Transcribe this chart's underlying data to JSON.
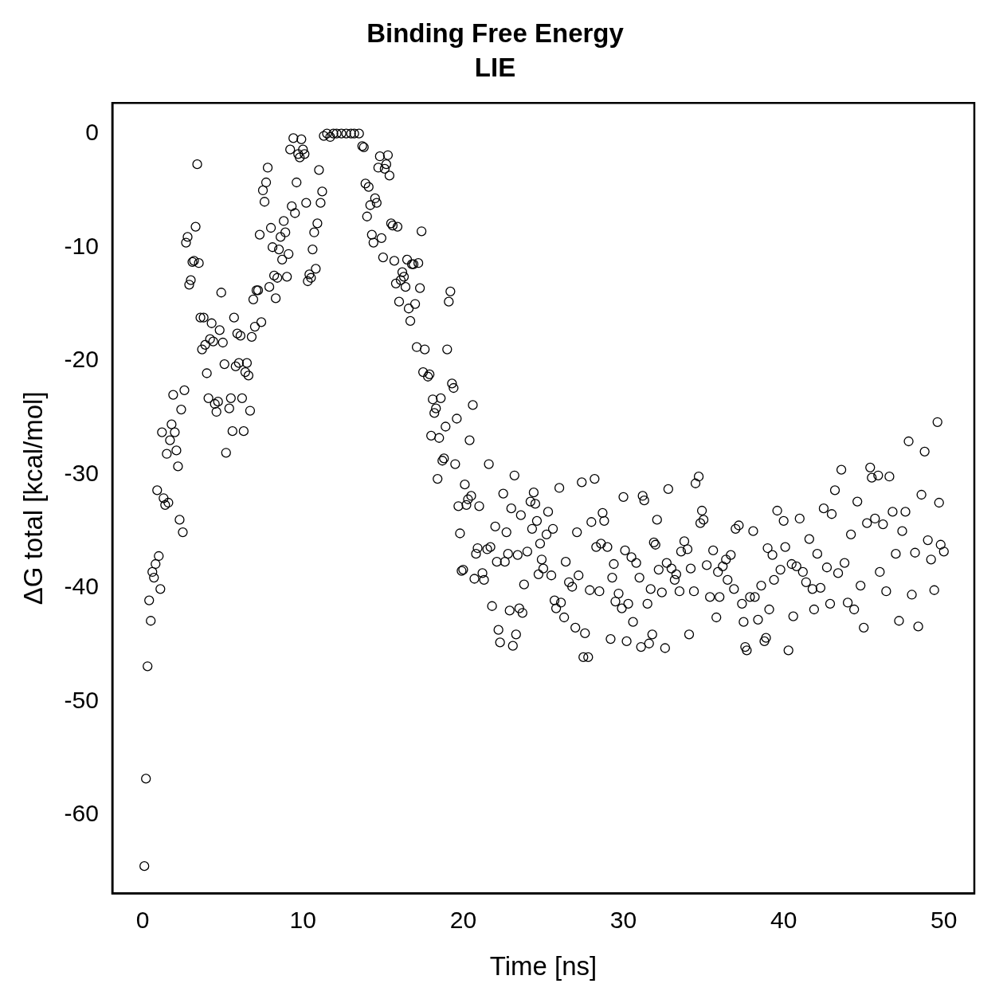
{
  "chart_data": {
    "type": "scatter",
    "title": "Binding Free Energy",
    "subtitle": "LIE",
    "xlabel": "Time [ns]",
    "ylabel": "ΔG total [kcal/mol]",
    "xlim": [
      -1.9,
      51.9
    ],
    "ylim": [
      -66.9,
      2.7
    ],
    "xticks": [
      0,
      10,
      20,
      30,
      40,
      50
    ],
    "yticks": [
      0,
      -10,
      -20,
      -30,
      -40,
      -50,
      -60
    ],
    "grid": false,
    "legend": false,
    "marker": "circle",
    "color": "#000000",
    "x": [
      0.1,
      0.2,
      0.3,
      0.4,
      0.5,
      0.6,
      0.7,
      0.8,
      0.9,
      1.0,
      1.1,
      1.2,
      1.3,
      1.4,
      1.5,
      1.6,
      1.7,
      1.8,
      1.9,
      2.0,
      2.1,
      2.2,
      2.3,
      2.4,
      2.5,
      2.6,
      2.7,
      2.8,
      2.9,
      3.0,
      3.1,
      3.2,
      3.3,
      3.4,
      3.5,
      3.6,
      3.7,
      3.8,
      3.9,
      4.0,
      4.1,
      4.2,
      4.3,
      4.4,
      4.5,
      4.6,
      4.7,
      4.8,
      4.9,
      5.0,
      5.1,
      5.2,
      5.4,
      5.5,
      5.6,
      5.7,
      5.8,
      5.9,
      6.0,
      6.1,
      6.2,
      6.3,
      6.4,
      6.5,
      6.6,
      6.7,
      6.8,
      6.9,
      7.0,
      7.1,
      7.2,
      7.3,
      7.4,
      7.5,
      7.6,
      7.7,
      7.8,
      7.9,
      8.0,
      8.1,
      8.2,
      8.3,
      8.4,
      8.5,
      8.6,
      8.7,
      8.8,
      8.9,
      9.0,
      9.1,
      9.2,
      9.3,
      9.4,
      9.5,
      9.6,
      9.7,
      9.8,
      9.9,
      10.0,
      10.1,
      10.2,
      10.3,
      10.4,
      10.5,
      10.6,
      10.7,
      10.8,
      10.9,
      11.0,
      11.1,
      11.2,
      11.3,
      11.5,
      11.7,
      11.9,
      12.1,
      12.4,
      12.7,
      13.0,
      13.2,
      13.5,
      13.7,
      13.8,
      13.9,
      14.0,
      14.1,
      14.2,
      14.3,
      14.4,
      14.5,
      14.6,
      14.7,
      14.8,
      14.9,
      15.0,
      15.1,
      15.2,
      15.3,
      15.4,
      15.5,
      15.6,
      15.7,
      15.8,
      15.9,
      16.0,
      16.1,
      16.2,
      16.3,
      16.4,
      16.5,
      16.6,
      16.7,
      16.8,
      16.9,
      17.0,
      17.1,
      17.2,
      17.3,
      17.4,
      17.5,
      17.6,
      17.8,
      17.9,
      18.0,
      18.1,
      18.2,
      18.3,
      18.4,
      18.5,
      18.6,
      18.7,
      18.8,
      18.9,
      19.0,
      19.1,
      19.2,
      19.3,
      19.4,
      19.5,
      19.6,
      19.7,
      19.8,
      19.9,
      20.0,
      20.1,
      20.2,
      20.3,
      20.4,
      20.5,
      20.6,
      20.7,
      20.8,
      20.9,
      21.0,
      21.2,
      21.3,
      21.5,
      21.6,
      21.7,
      21.8,
      22.0,
      22.1,
      22.2,
      22.3,
      22.5,
      22.6,
      22.7,
      22.8,
      22.9,
      23.0,
      23.1,
      23.2,
      23.3,
      23.4,
      23.5,
      23.6,
      23.7,
      23.8,
      24.0,
      24.2,
      24.3,
      24.4,
      24.5,
      24.6,
      24.7,
      24.8,
      24.9,
      25.0,
      25.2,
      25.3,
      25.5,
      25.6,
      25.7,
      25.8,
      26.0,
      26.1,
      26.3,
      26.4,
      26.6,
      26.8,
      27.0,
      27.1,
      27.2,
      27.4,
      27.5,
      27.6,
      27.8,
      27.9,
      28.0,
      28.2,
      28.3,
      28.5,
      28.6,
      28.7,
      28.8,
      29.0,
      29.2,
      29.3,
      29.4,
      29.5,
      29.7,
      29.9,
      30.0,
      30.1,
      30.2,
      30.3,
      30.5,
      30.6,
      30.8,
      31.0,
      31.1,
      31.2,
      31.3,
      31.5,
      31.6,
      31.7,
      31.8,
      31.9,
      32.0,
      32.1,
      32.2,
      32.4,
      32.6,
      32.7,
      32.8,
      33.0,
      33.2,
      33.3,
      33.5,
      33.6,
      33.8,
      34.0,
      34.1,
      34.2,
      34.4,
      34.5,
      34.7,
      34.8,
      34.9,
      35.0,
      35.2,
      35.4,
      35.6,
      35.8,
      35.9,
      36.0,
      36.2,
      36.4,
      36.5,
      36.7,
      36.9,
      37.0,
      37.2,
      37.4,
      37.5,
      37.6,
      37.7,
      37.9,
      38.1,
      38.2,
      38.4,
      38.6,
      38.8,
      38.9,
      39.0,
      39.1,
      39.3,
      39.4,
      39.6,
      39.8,
      40.0,
      40.1,
      40.3,
      40.5,
      40.6,
      40.8,
      41.0,
      41.2,
      41.4,
      41.6,
      41.8,
      41.9,
      42.1,
      42.3,
      42.5,
      42.7,
      42.9,
      43.0,
      43.2,
      43.4,
      43.6,
      43.8,
      44.0,
      44.2,
      44.4,
      44.6,
      44.8,
      45.0,
      45.2,
      45.4,
      45.5,
      45.7,
      45.9,
      46.0,
      46.2,
      46.4,
      46.6,
      46.8,
      47.0,
      47.2,
      47.4,
      47.6,
      47.8,
      48.0,
      48.2,
      48.4,
      48.6,
      48.8,
      49.0,
      49.2,
      49.4,
      49.6,
      49.7,
      49.8,
      50.0
    ],
    "values": [
      -64.5,
      -56.8,
      -46.9,
      -41.1,
      -42.9,
      -38.6,
      -39.1,
      -37.9,
      -31.4,
      -37.2,
      -40.1,
      -26.3,
      -32.1,
      -32.7,
      -28.2,
      -32.5,
      -27.0,
      -25.6,
      -23.0,
      -26.3,
      -27.9,
      -29.3,
      -34.0,
      -24.3,
      -35.1,
      -22.6,
      -9.6,
      -9.1,
      -13.3,
      -12.9,
      -11.3,
      -11.2,
      -8.2,
      -2.7,
      -11.4,
      -16.2,
      -19.0,
      -16.2,
      -18.6,
      -21.1,
      -23.3,
      -18.1,
      -16.7,
      -18.3,
      -23.8,
      -24.5,
      -23.6,
      -17.3,
      -14.0,
      -18.4,
      -20.3,
      -28.1,
      -24.2,
      -23.3,
      -26.2,
      -16.2,
      -20.5,
      -17.6,
      -20.2,
      -17.8,
      -23.3,
      -26.2,
      -21.0,
      -20.2,
      -21.3,
      -24.4,
      -17.9,
      -14.6,
      -17.0,
      -13.8,
      -13.8,
      -8.9,
      -16.6,
      -5.0,
      -6.0,
      -4.3,
      -3.0,
      -13.5,
      -8.3,
      -10.0,
      -12.5,
      -14.5,
      -12.7,
      -10.2,
      -9.1,
      -11.1,
      -7.7,
      -8.7,
      -12.6,
      -10.6,
      -1.4,
      -6.4,
      -0.4,
      -7.0,
      -4.3,
      -1.8,
      -2.1,
      -0.5,
      -1.4,
      -1.8,
      -6.1,
      -13.0,
      -12.4,
      -12.7,
      -10.2,
      -8.7,
      -11.9,
      -7.9,
      -3.2,
      -6.1,
      -5.1,
      -0.2,
      0,
      -0.3,
      0,
      0,
      0,
      0,
      0,
      0,
      0,
      -1.1,
      -1.2,
      -4.4,
      -7.3,
      -4.7,
      -6.3,
      -8.9,
      -9.6,
      -5.7,
      -6.1,
      -3.0,
      -2.0,
      -9.2,
      -10.9,
      -3.1,
      -2.7,
      -1.9,
      -3.7,
      -7.9,
      -8.1,
      -11.2,
      -13.2,
      -8.2,
      -14.8,
      -12.9,
      -12.2,
      -12.6,
      -13.5,
      -11.1,
      -15.4,
      -16.5,
      -11.5,
      -11.5,
      -15.0,
      -18.8,
      -11.4,
      -13.6,
      -8.6,
      -21.0,
      -19.0,
      -21.4,
      -21.2,
      -26.6,
      -23.4,
      -24.6,
      -24.2,
      -30.4,
      -26.8,
      -23.3,
      -28.8,
      -28.6,
      -25.8,
      -19.0,
      -14.8,
      -13.9,
      -22.0,
      -22.4,
      -29.1,
      -25.1,
      -32.8,
      -35.2,
      -38.5,
      -38.4,
      -30.9,
      -32.7,
      -32.2,
      -27.0,
      -31.9,
      -23.9,
      -39.2,
      -37.0,
      -36.5,
      -32.8,
      -38.7,
      -39.3,
      -36.6,
      -29.1,
      -36.4,
      -41.6,
      -34.6,
      -37.7,
      -43.7,
      -44.8,
      -31.7,
      -37.7,
      -35.1,
      -37.0,
      -42.0,
      -33.0,
      -45.1,
      -30.1,
      -44.1,
      -37.1,
      -41.8,
      -33.6,
      -42.2,
      -39.7,
      -36.8,
      -32.4,
      -34.8,
      -31.6,
      -32.6,
      -34.1,
      -38.8,
      -36.1,
      -37.5,
      -38.3,
      -35.3,
      -33.3,
      -38.9,
      -34.8,
      -41.1,
      -41.8,
      -31.2,
      -41.3,
      -42.6,
      -37.7,
      -39.5,
      -39.9,
      -43.5,
      -35.1,
      -38.9,
      -30.7,
      -46.1,
      -44.0,
      -46.1,
      -40.2,
      -34.2,
      -30.4,
      -36.4,
      -40.3,
      -36.1,
      -33.4,
      -34.1,
      -36.4,
      -44.5,
      -39.1,
      -37.9,
      -41.2,
      -40.5,
      -41.8,
      -32.0,
      -36.7,
      -44.7,
      -41.4,
      -37.3,
      -43.0,
      -37.8,
      -39.1,
      -45.2,
      -31.9,
      -32.3,
      -41.4,
      -44.9,
      -40.1,
      -44.1,
      -36.0,
      -36.2,
      -34.0,
      -38.4,
      -40.4,
      -45.3,
      -37.8,
      -31.3,
      -38.3,
      -39.3,
      -38.8,
      -40.3,
      -36.8,
      -35.9,
      -36.6,
      -44.1,
      -38.3,
      -40.3,
      -30.8,
      -30.2,
      -34.3,
      -33.2,
      -34.0,
      -38.0,
      -40.8,
      -36.7,
      -42.6,
      -38.6,
      -40.8,
      -38.1,
      -37.5,
      -39.3,
      -37.1,
      -40.1,
      -34.8,
      -34.5,
      -41.4,
      -43.0,
      -45.2,
      -45.5,
      -40.8,
      -35.0,
      -40.8,
      -42.8,
      -39.8,
      -44.7,
      -44.4,
      -36.5,
      -41.9,
      -37.1,
      -39.3,
      -33.2,
      -38.4,
      -34.1,
      -36.4,
      -45.5,
      -37.9,
      -42.5,
      -38.1,
      -33.9,
      -38.6,
      -39.5,
      -35.7,
      -40.1,
      -41.9,
      -37.0,
      -40.0,
      -33.0,
      -38.2,
      -41.4,
      -33.5,
      -31.4,
      -38.7,
      -29.6,
      -37.8,
      -41.3,
      -35.3,
      -41.9,
      -32.4,
      -39.8,
      -43.5,
      -34.3,
      -29.4,
      -30.3,
      -33.9,
      -30.1,
      -38.6,
      -34.4,
      -40.3,
      -30.2,
      -33.3,
      -37.0,
      -42.9,
      -35.0,
      -33.3,
      -27.1,
      -40.6,
      -36.9,
      -43.4,
      -31.8,
      -28.0,
      -35.8,
      -37.5,
      -40.2,
      -25.4,
      -32.5,
      -36.2,
      -36.8
    ]
  }
}
